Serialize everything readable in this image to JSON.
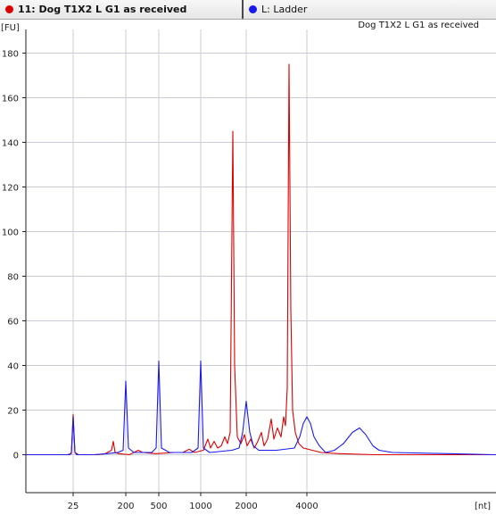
{
  "tabs": [
    {
      "label": "11: Dog T1X2 L G1 as received",
      "dot_color": "#dd0000",
      "active": true
    },
    {
      "label": "L: Ladder",
      "dot_color": "#1a1aee",
      "active": false
    }
  ],
  "chart_data": {
    "type": "line",
    "title": "Dog T1X2 L G1 as received",
    "ylabel": "[FU]",
    "xlabel": "[nt]",
    "ylim": [
      -17,
      192
    ],
    "yticks": [
      0,
      20,
      40,
      60,
      80,
      100,
      120,
      140,
      160,
      180
    ],
    "xticks": [
      "25",
      "200",
      "500",
      "1000",
      "2000",
      "4000"
    ],
    "grid": true,
    "series": [
      {
        "name": "11: Dog T1X2 L G1 as received",
        "color": "#dd0000",
        "points": [
          [
            29,
            0
          ],
          [
            75,
            0
          ],
          [
            80,
            0.5
          ],
          [
            82,
            18
          ],
          [
            84,
            1
          ],
          [
            88,
            0
          ],
          [
            110,
            0
          ],
          [
            118,
            0.5
          ],
          [
            125,
            2
          ],
          [
            127,
            6
          ],
          [
            129,
            1
          ],
          [
            133,
            0.5
          ],
          [
            145,
            0
          ],
          [
            155,
            2
          ],
          [
            160,
            1
          ],
          [
            175,
            0.5
          ],
          [
            195,
            1
          ],
          [
            205,
            1
          ],
          [
            212,
            2.5
          ],
          [
            218,
            1
          ],
          [
            228,
            2
          ],
          [
            233,
            7
          ],
          [
            236,
            3
          ],
          [
            240,
            6
          ],
          [
            244,
            3
          ],
          [
            248,
            4
          ],
          [
            252,
            8
          ],
          [
            255,
            5
          ],
          [
            258,
            10
          ],
          [
            261,
            145
          ],
          [
            263,
            40
          ],
          [
            266,
            8
          ],
          [
            270,
            5
          ],
          [
            274,
            9
          ],
          [
            277,
            4
          ],
          [
            281,
            7
          ],
          [
            285,
            3
          ],
          [
            289,
            6
          ],
          [
            293,
            10
          ],
          [
            296,
            4
          ],
          [
            300,
            7
          ],
          [
            304,
            16
          ],
          [
            307,
            7
          ],
          [
            311,
            12
          ],
          [
            315,
            8
          ],
          [
            318,
            17
          ],
          [
            320,
            13
          ],
          [
            322,
            30
          ],
          [
            324,
            175
          ],
          [
            326,
            65
          ],
          [
            328,
            20
          ],
          [
            331,
            10
          ],
          [
            335,
            5
          ],
          [
            340,
            3
          ],
          [
            350,
            2
          ],
          [
            360,
            1
          ],
          [
            380,
            0.5
          ],
          [
            420,
            0
          ],
          [
            556,
            0
          ]
        ]
      },
      {
        "name": "L: Ladder",
        "color": "#1a1aee",
        "points": [
          [
            29,
            0
          ],
          [
            78,
            0
          ],
          [
            80,
            1
          ],
          [
            82,
            17
          ],
          [
            84,
            1
          ],
          [
            86,
            0
          ],
          [
            105,
            0
          ],
          [
            120,
            0.5
          ],
          [
            132,
            1
          ],
          [
            138,
            2
          ],
          [
            141,
            33
          ],
          [
            144,
            3
          ],
          [
            150,
            1
          ],
          [
            170,
            1
          ],
          [
            175,
            3
          ],
          [
            178,
            42
          ],
          [
            181,
            3
          ],
          [
            190,
            1
          ],
          [
            215,
            1
          ],
          [
            222,
            3
          ],
          [
            225,
            42
          ],
          [
            228,
            3
          ],
          [
            235,
            1
          ],
          [
            260,
            2
          ],
          [
            268,
            3
          ],
          [
            272,
            10
          ],
          [
            276,
            24
          ],
          [
            280,
            10
          ],
          [
            284,
            4
          ],
          [
            290,
            2
          ],
          [
            310,
            2
          ],
          [
            330,
            3
          ],
          [
            336,
            8
          ],
          [
            340,
            14
          ],
          [
            344,
            17
          ],
          [
            348,
            14
          ],
          [
            352,
            8
          ],
          [
            358,
            4
          ],
          [
            365,
            1
          ],
          [
            375,
            2
          ],
          [
            385,
            5
          ],
          [
            395,
            10
          ],
          [
            403,
            12
          ],
          [
            410,
            9
          ],
          [
            418,
            4
          ],
          [
            425,
            2
          ],
          [
            440,
            1
          ],
          [
            556,
            0
          ]
        ]
      }
    ]
  }
}
